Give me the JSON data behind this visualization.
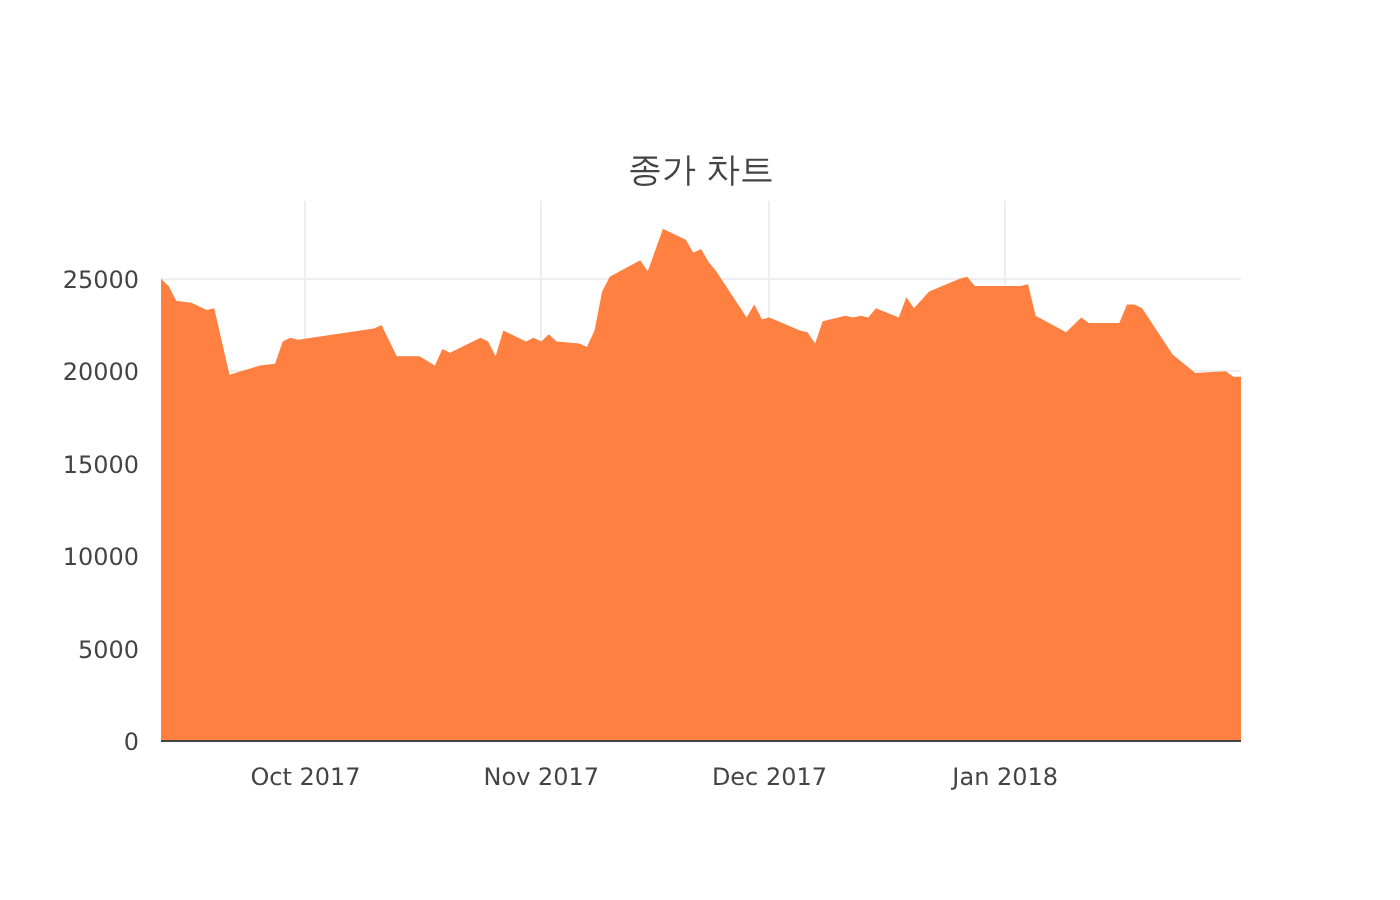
{
  "chart_data": {
    "type": "area",
    "title": "종가 차트",
    "x": [
      "2017-09-12",
      "2017-09-13",
      "2017-09-14",
      "2017-09-16",
      "2017-09-18",
      "2017-09-19",
      "2017-09-21",
      "2017-09-25",
      "2017-09-27",
      "2017-09-28",
      "2017-09-29",
      "2017-09-30",
      "2017-10-10",
      "2017-10-11",
      "2017-10-13",
      "2017-10-16",
      "2017-10-18",
      "2017-10-19",
      "2017-10-20",
      "2017-10-24",
      "2017-10-25",
      "2017-10-26",
      "2017-10-27",
      "2017-10-30",
      "2017-10-31",
      "2017-11-01",
      "2017-11-02",
      "2017-11-03",
      "2017-11-06",
      "2017-11-07",
      "2017-11-08",
      "2017-11-09",
      "2017-11-10",
      "2017-11-14",
      "2017-11-15",
      "2017-11-17",
      "2017-11-20",
      "2017-11-21",
      "2017-11-22",
      "2017-11-23",
      "2017-11-24",
      "2017-11-28",
      "2017-11-29",
      "2017-11-30",
      "2017-12-01",
      "2017-12-05",
      "2017-12-06",
      "2017-12-07",
      "2017-12-08",
      "2017-12-11",
      "2017-12-12",
      "2017-12-13",
      "2017-12-14",
      "2017-12-15",
      "2017-12-18",
      "2017-12-19",
      "2017-12-20",
      "2017-12-22",
      "2017-12-26",
      "2017-12-27",
      "2017-12-28",
      "2018-01-03",
      "2018-01-04",
      "2018-01-05",
      "2018-01-09",
      "2018-01-11",
      "2018-01-12",
      "2018-01-16",
      "2018-01-17",
      "2018-01-18",
      "2018-01-19",
      "2018-01-23",
      "2018-01-26",
      "2018-01-30",
      "2018-01-31",
      "2018-02-01"
    ],
    "series": [
      {
        "color": "#ff8040",
        "values": [
          25000,
          24600,
          23800,
          23700,
          23300,
          23400,
          19800,
          20300,
          20400,
          21600,
          21800,
          21700,
          22300,
          22500,
          20800,
          20800,
          20300,
          21200,
          21000,
          21800,
          21600,
          20800,
          22200,
          21600,
          21800,
          21600,
          22000,
          21600,
          21500,
          21300,
          22200,
          24300,
          25100,
          26000,
          25400,
          27700,
          27100,
          26400,
          26600,
          25900,
          25400,
          22900,
          23600,
          22800,
          22900,
          22200,
          22100,
          21500,
          22700,
          23000,
          22900,
          23000,
          22900,
          23400,
          22900,
          24000,
          23400,
          24300,
          25000,
          25100,
          24600,
          24600,
          24700,
          23000,
          22100,
          22900,
          22600,
          22600,
          23600,
          23600,
          23400,
          20900,
          19900,
          20000,
          19700,
          19700
        ]
      }
    ],
    "xlim": [
      "2017-09-12",
      "2018-02-01"
    ],
    "xticks": [
      {
        "value": "2017-10-01",
        "label": "Oct 2017"
      },
      {
        "value": "2017-11-01",
        "label": "Nov 2017"
      },
      {
        "value": "2017-12-01",
        "label": "Dec 2017"
      },
      {
        "value": "2018-01-01",
        "label": "Jan 2018"
      }
    ],
    "ylim": [
      0,
      29200
    ],
    "yticks": [
      0,
      5000,
      10000,
      15000,
      20000,
      25000
    ],
    "grid": true
  }
}
